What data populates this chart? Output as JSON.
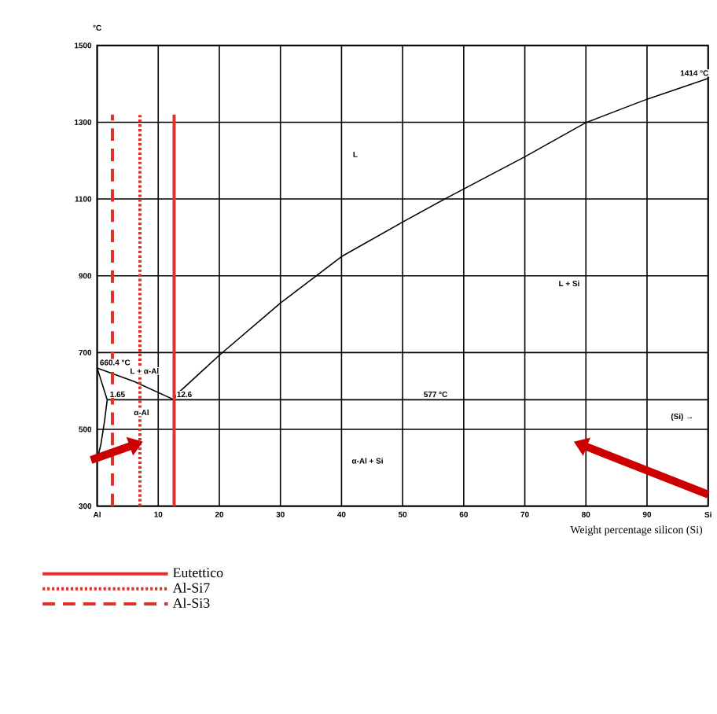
{
  "chart_data": {
    "type": "line",
    "ylabel": "°C",
    "xlabel": "Weight percentage silicon (Si)",
    "xlim": [
      0,
      100
    ],
    "ylim": [
      300,
      1500
    ],
    "xticks": [
      {
        "value": 0,
        "label": "Al"
      },
      10,
      20,
      30,
      40,
      50,
      60,
      70,
      80,
      90,
      {
        "value": 100,
        "label": "Si"
      }
    ],
    "yticks": [
      300,
      500,
      700,
      900,
      1100,
      1300,
      1500
    ],
    "grid": true,
    "legend": "bottom",
    "series": [
      {
        "color": "#000000",
        "x": [
          12.6,
          13,
          20,
          30,
          40,
          50,
          57,
          70,
          80,
          90,
          100
        ],
        "values": [
          577,
          591,
          693,
          829,
          950,
          1040,
          1101,
          1210,
          1299,
          1360,
          1414
        ]
      },
      {
        "color": "#000000",
        "x": [
          0,
          6,
          12.6
        ],
        "values": [
          660,
          625,
          577
        ]
      },
      {
        "color": "#000000",
        "x": [
          0,
          1.65,
          1.2,
          0.6,
          0
        ],
        "values": [
          660,
          577,
          520,
          460,
          420
        ]
      },
      {
        "color": "#000000",
        "x": [
          1.65,
          100
        ],
        "values": [
          577,
          577
        ]
      },
      {
        "name": "Eutettico",
        "color": "#e0302a",
        "line_style": "solid",
        "x": [
          12.6,
          12.6
        ],
        "values": [
          300,
          1320
        ]
      },
      {
        "name": "Al-Si7",
        "color": "#e0302a",
        "line_style": "dotted",
        "x": [
          7,
          7
        ],
        "values": [
          300,
          1320
        ]
      },
      {
        "name": "Al-Si3",
        "color": "#e0302a",
        "line_style": "dashed",
        "x": [
          2.5,
          2.5
        ],
        "values": [
          300,
          1320
        ]
      }
    ],
    "annotations": [
      {
        "text": "1414 °C",
        "x": 100,
        "y": 1414
      },
      "L",
      "L + Si",
      {
        "text": "577 °C",
        "x": 53,
        "y": 577
      },
      "α-Al + Si",
      "(Si) →",
      {
        "text": "660.4 °C",
        "x": 0,
        "y": 660
      },
      "L + α-Al",
      {
        "text": "1.65",
        "x": 1.65,
        "y": 577
      },
      "α-Al",
      {
        "text": "12.6",
        "x": 12.6,
        "y": 577
      }
    ]
  }
}
